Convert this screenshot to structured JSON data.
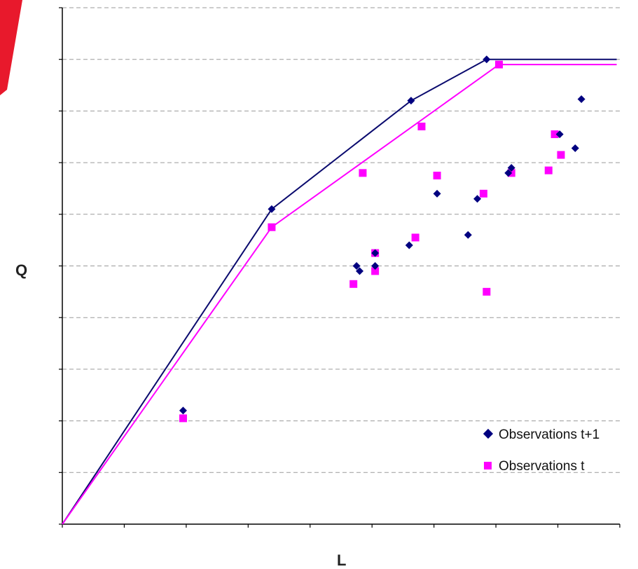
{
  "chart_data": {
    "type": "scatter",
    "xlabel": "L",
    "ylabel": "Q",
    "xlim": [
      0,
      9
    ],
    "ylim": [
      0,
      10
    ],
    "grid": "horizontal-dashed",
    "legend": "bottom-right",
    "frontiers": [
      {
        "color": "#0a0a6e",
        "points": [
          [
            0,
            0
          ],
          [
            3.38,
            6.1
          ],
          [
            5.63,
            8.2
          ],
          [
            6.85,
            9.0
          ],
          [
            8.95,
            9.0
          ]
        ]
      },
      {
        "color": "#ff00ff",
        "points": [
          [
            0,
            0
          ],
          [
            3.38,
            5.75
          ],
          [
            7.05,
            8.9
          ],
          [
            8.95,
            8.9
          ]
        ]
      }
    ],
    "series": [
      {
        "name": "Observations t+1",
        "marker": "diamond",
        "color": "#000080",
        "points": [
          [
            1.95,
            2.2
          ],
          [
            3.38,
            6.1
          ],
          [
            4.75,
            5.0
          ],
          [
            4.8,
            4.9
          ],
          [
            5.05,
            5.0
          ],
          [
            5.05,
            5.25
          ],
          [
            5.6,
            5.4
          ],
          [
            5.63,
            8.2
          ],
          [
            6.05,
            6.4
          ],
          [
            6.55,
            5.6
          ],
          [
            6.7,
            6.3
          ],
          [
            6.85,
            9.0
          ],
          [
            7.2,
            6.8
          ],
          [
            7.25,
            6.9
          ],
          [
            8.03,
            7.55
          ],
          [
            8.28,
            7.28
          ],
          [
            8.38,
            8.23
          ]
        ]
      },
      {
        "name": "Observations t",
        "marker": "square",
        "color": "#ff00ff",
        "points": [
          [
            1.95,
            2.05
          ],
          [
            3.38,
            5.75
          ],
          [
            4.7,
            4.65
          ],
          [
            4.85,
            6.8
          ],
          [
            5.05,
            5.25
          ],
          [
            5.05,
            4.9
          ],
          [
            5.7,
            5.55
          ],
          [
            5.8,
            7.7
          ],
          [
            6.05,
            6.75
          ],
          [
            6.8,
            6.4
          ],
          [
            6.85,
            4.5
          ],
          [
            7.05,
            8.9
          ],
          [
            7.25,
            6.8
          ],
          [
            7.85,
            6.85
          ],
          [
            7.95,
            7.55
          ],
          [
            8.05,
            7.15
          ]
        ]
      }
    ]
  }
}
